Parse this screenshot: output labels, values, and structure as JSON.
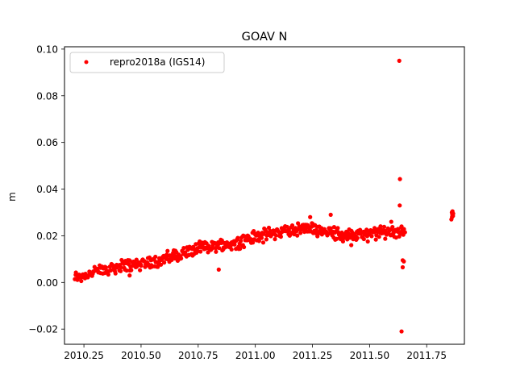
{
  "chart_data": {
    "type": "scatter",
    "title": "GOAV N",
    "xlabel": "",
    "ylabel": "m",
    "xlim": [
      2010.165,
      2011.915
    ],
    "ylim": [
      -0.0265,
      0.101
    ],
    "xticks": [
      2010.25,
      2010.5,
      2010.75,
      2011.0,
      2011.25,
      2011.5,
      2011.75
    ],
    "xtick_labels": [
      "2010.25",
      "2010.50",
      "2010.75",
      "2011.00",
      "2011.25",
      "2011.50",
      "2011.75"
    ],
    "yticks": [
      -0.02,
      0.0,
      0.02,
      0.04,
      0.06,
      0.08,
      0.1
    ],
    "ytick_labels": [
      "−0.02",
      "0.00",
      "0.02",
      "0.04",
      "0.06",
      "0.08",
      "0.10"
    ],
    "grid": false,
    "legend_position": "top-left",
    "series": [
      {
        "name": "repro2018a (IGS14)",
        "color": "#ff0000",
        "marker": "circle",
        "trend": [
          {
            "x": 2010.21,
            "y": 0.002
          },
          {
            "x": 2010.3,
            "y": 0.0045
          },
          {
            "x": 2010.4,
            "y": 0.007
          },
          {
            "x": 2010.5,
            "y": 0.008
          },
          {
            "x": 2010.6,
            "y": 0.01
          },
          {
            "x": 2010.7,
            "y": 0.013
          },
          {
            "x": 2010.8,
            "y": 0.0155
          },
          {
            "x": 2010.9,
            "y": 0.0165
          },
          {
            "x": 2011.0,
            "y": 0.0195
          },
          {
            "x": 2011.1,
            "y": 0.0215
          },
          {
            "x": 2011.2,
            "y": 0.023
          },
          {
            "x": 2011.3,
            "y": 0.0225
          },
          {
            "x": 2011.4,
            "y": 0.02
          },
          {
            "x": 2011.5,
            "y": 0.0205
          },
          {
            "x": 2011.6,
            "y": 0.022
          },
          {
            "x": 2011.65,
            "y": 0.022
          }
        ],
        "outliers": [
          {
            "x": 2010.84,
            "y": 0.0055
          },
          {
            "x": 2010.45,
            "y": 0.003
          },
          {
            "x": 2011.24,
            "y": 0.028
          },
          {
            "x": 2011.33,
            "y": 0.029
          },
          {
            "x": 2011.42,
            "y": 0.016
          },
          {
            "x": 2011.595,
            "y": 0.026
          },
          {
            "x": 2011.63,
            "y": 0.095
          },
          {
            "x": 2011.633,
            "y": 0.0443
          },
          {
            "x": 2011.632,
            "y": 0.033
          },
          {
            "x": 2011.64,
            "y": 0.024
          },
          {
            "x": 2011.645,
            "y": 0.0095
          },
          {
            "x": 2011.65,
            "y": 0.009
          },
          {
            "x": 2011.645,
            "y": 0.0065
          },
          {
            "x": 2011.64,
            "y": -0.021
          },
          {
            "x": 2011.655,
            "y": 0.0215
          },
          {
            "x": 2011.86,
            "y": 0.03
          },
          {
            "x": 2011.862,
            "y": 0.029
          },
          {
            "x": 2011.865,
            "y": 0.0285
          },
          {
            "x": 2011.858,
            "y": 0.027
          },
          {
            "x": 2011.866,
            "y": 0.0295
          },
          {
            "x": 2011.863,
            "y": 0.0305
          },
          {
            "x": 2011.861,
            "y": 0.028
          }
        ]
      }
    ]
  }
}
